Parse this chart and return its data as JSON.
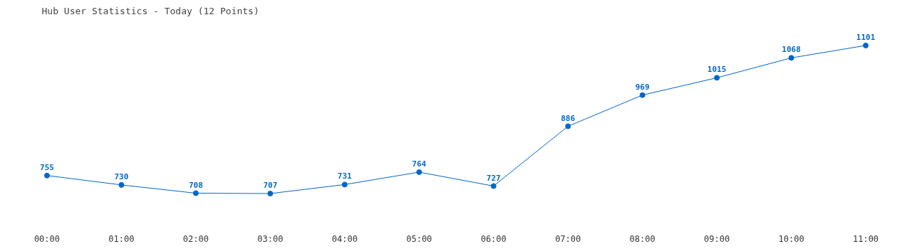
{
  "chart_data": {
    "type": "line",
    "title": "Hub User Statistics - Today (12 Points)",
    "categories": [
      "00:00",
      "01:00",
      "02:00",
      "03:00",
      "04:00",
      "05:00",
      "06:00",
      "07:00",
      "08:00",
      "09:00",
      "10:00",
      "11:00"
    ],
    "series": [
      {
        "color": "#0066cc",
        "values": [
          755,
          730,
          708,
          707,
          731,
          764,
          727,
          886,
          969,
          1015,
          1068,
          1101
        ]
      }
    ],
    "data_labels": true,
    "marker": "circle",
    "line_style": "solid",
    "tick_labels": "x"
  }
}
